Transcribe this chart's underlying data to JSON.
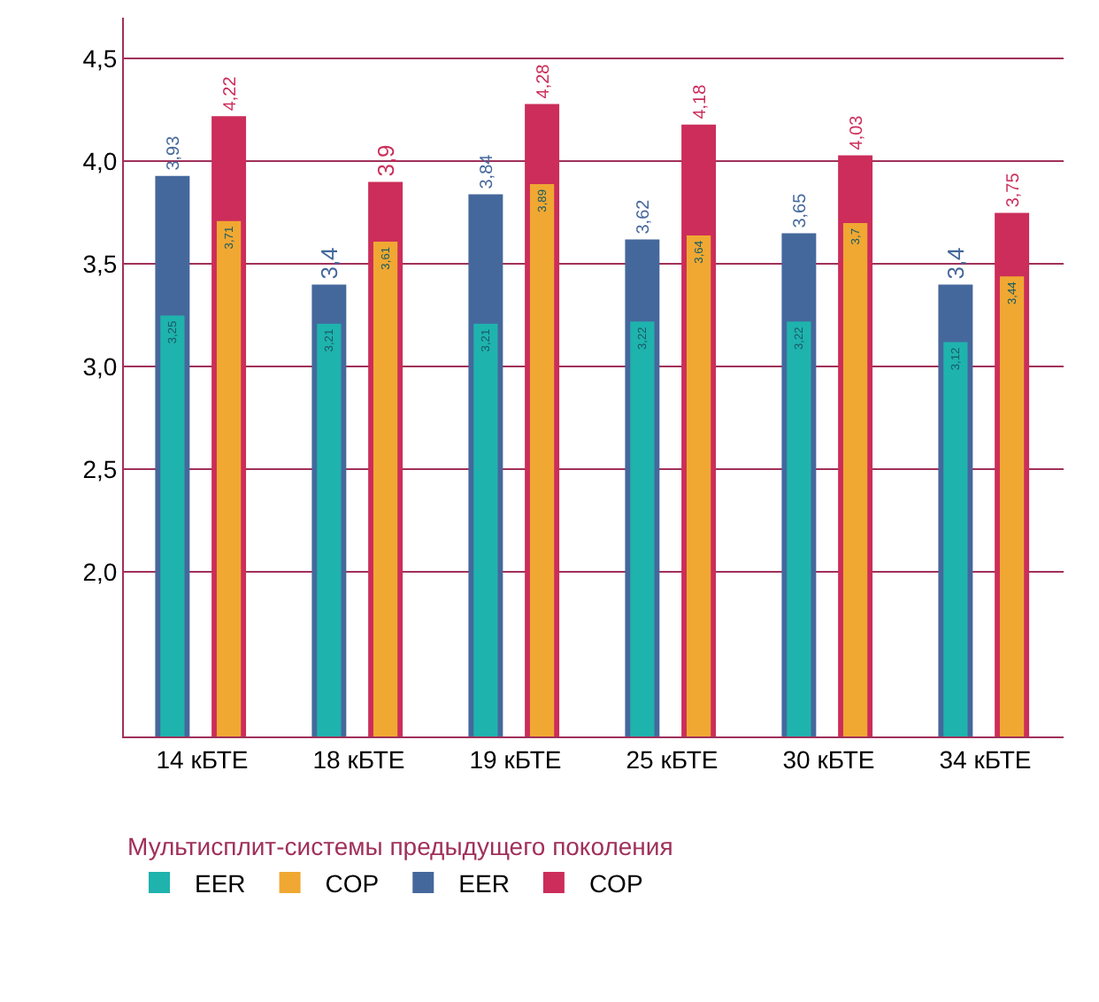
{
  "chart_data": {
    "type": "bar",
    "categories": [
      "14 кБТЕ",
      "18 кБТЕ",
      "19 кБТЕ",
      "25 кБТЕ",
      "30 кБТЕ",
      "34 кБТЕ"
    ],
    "series": [
      {
        "name": "EER",
        "color": "#1fb3ae",
        "values": [
          3.25,
          3.21,
          3.21,
          3.22,
          3.22,
          3.12
        ],
        "value_labels": [
          "3,25",
          "3,21",
          "3,21",
          "3,22",
          "3,22",
          "3,12"
        ]
      },
      {
        "name": "COP",
        "color": "#f0a832",
        "values": [
          3.71,
          3.61,
          3.89,
          3.64,
          3.7,
          3.44
        ],
        "value_labels": [
          "3,71",
          "3,61",
          "3,89",
          "3,64",
          "3,7",
          "3,44"
        ]
      },
      {
        "name": "EER",
        "color": "#45689c",
        "values": [
          3.93,
          3.4,
          3.84,
          3.62,
          3.65,
          3.4
        ],
        "value_labels": [
          "3,93",
          "3,4",
          "3,84",
          "3,62",
          "3,65",
          "3,4"
        ]
      },
      {
        "name": "COP",
        "color": "#cc2d5a",
        "values": [
          4.22,
          3.9,
          4.28,
          4.18,
          4.03,
          3.75
        ],
        "value_labels": [
          "4,22",
          "3,9",
          "4,28",
          "4,18",
          "4,03",
          "3,75"
        ]
      }
    ],
    "legend_title": "Мультисплит-системы предыдущего поколения",
    "ylim": [
      1.2,
      4.7
    ],
    "yticks": [
      {
        "value": 2,
        "label": "2,0"
      },
      {
        "value": 2.5,
        "label": "2,5"
      },
      {
        "value": 3,
        "label": "3,0"
      },
      {
        "value": 3.5,
        "label": "3,5"
      },
      {
        "value": 4,
        "label": "4,0"
      },
      {
        "value": 4.5,
        "label": "4,5"
      }
    ],
    "grid": "y",
    "legend": "bottom"
  }
}
